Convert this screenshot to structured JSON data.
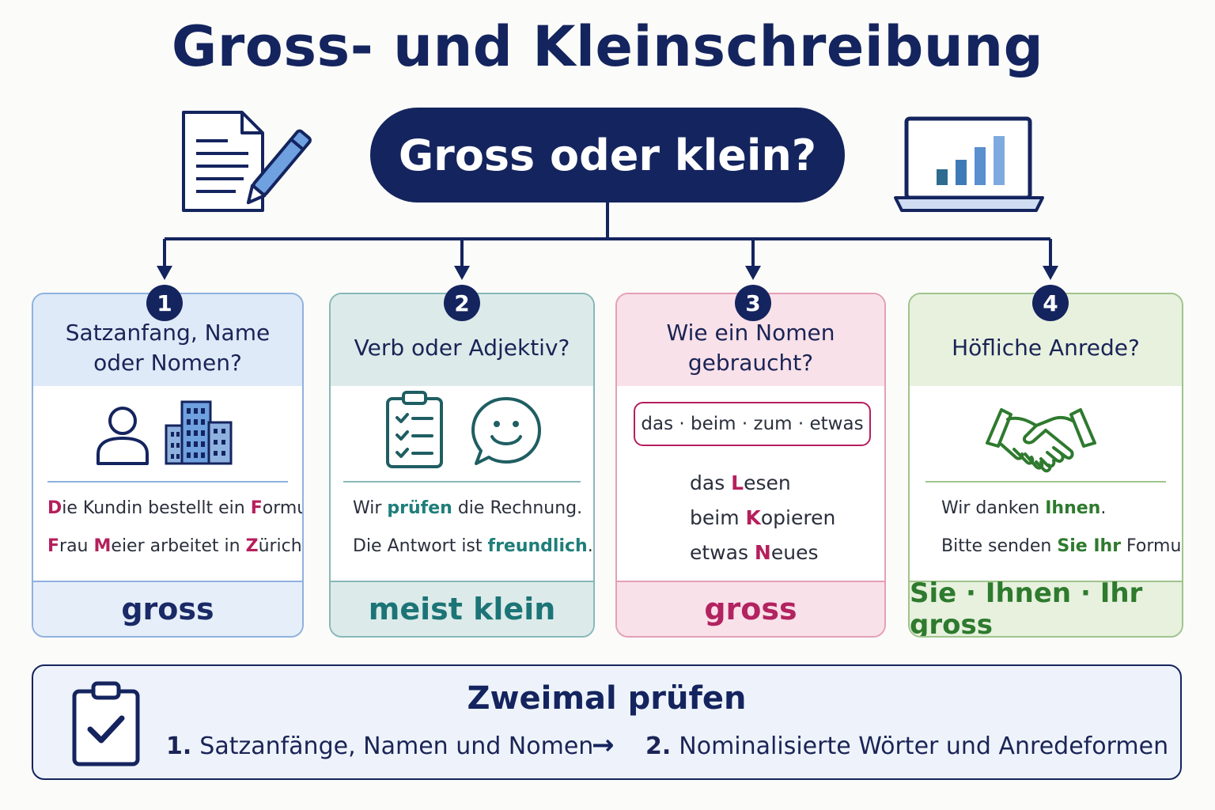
{
  "title": "Gross- und Kleinschreibung",
  "question": "Gross oder klein?",
  "colors": {
    "navy": "#14245e",
    "blue": "#8fb1df",
    "teal": "#1f7e7a",
    "pink": "#b51f5c",
    "green": "#2e7a2e"
  },
  "icons": [
    "document-pen-icon",
    "laptop-chart-icon",
    "person-icon",
    "buildings-icon",
    "clipboard-checklist-icon",
    "smiley-speech-icon",
    "handshake-icon",
    "clipboard-check-icon"
  ],
  "cards": [
    {
      "number": "1",
      "heading": "Satzanfang, Name oder Nomen?",
      "examples": [
        {
          "parts": [
            "D",
            "ie Kundin bestellt ein ",
            "F",
            "ormular."
          ]
        },
        {
          "parts": [
            "F",
            "rau ",
            "M",
            "eier arbeitet in ",
            "Z",
            "ürich."
          ]
        }
      ],
      "result": "gross"
    },
    {
      "number": "2",
      "heading": "Verb oder Adjektiv?",
      "examples": [
        {
          "parts": [
            "Wir ",
            "prüfen",
            " die Rechnung."
          ]
        },
        {
          "parts": [
            "Die Antwort ist ",
            "freundlich",
            "."
          ]
        }
      ],
      "result": "meist klein"
    },
    {
      "number": "3",
      "heading": "Wie ein Nomen gebraucht?",
      "words": "das · beim · zum · etwas",
      "examples": [
        {
          "parts": [
            "das ",
            "L",
            "esen"
          ]
        },
        {
          "parts": [
            "beim ",
            "K",
            "opieren"
          ]
        },
        {
          "parts": [
            "etwas ",
            "N",
            "eues"
          ]
        }
      ],
      "result": "gross"
    },
    {
      "number": "4",
      "heading": "Höfliche Anrede?",
      "examples": [
        {
          "parts": [
            "Wir danken ",
            "Ihnen",
            "."
          ]
        },
        {
          "parts": [
            "Bitte senden ",
            "Sie Ihr",
            " Formular."
          ]
        }
      ],
      "result": "Sie · Ihnen · Ihr gross"
    }
  ],
  "summary": {
    "title": "Zweimal prüfen",
    "step1_num": "1.",
    "step1": "Satzanfänge, Namen und Nomen",
    "arrow": "→",
    "step2_num": "2.",
    "step2": "Nominalisierte Wörter und Anredeformen"
  }
}
